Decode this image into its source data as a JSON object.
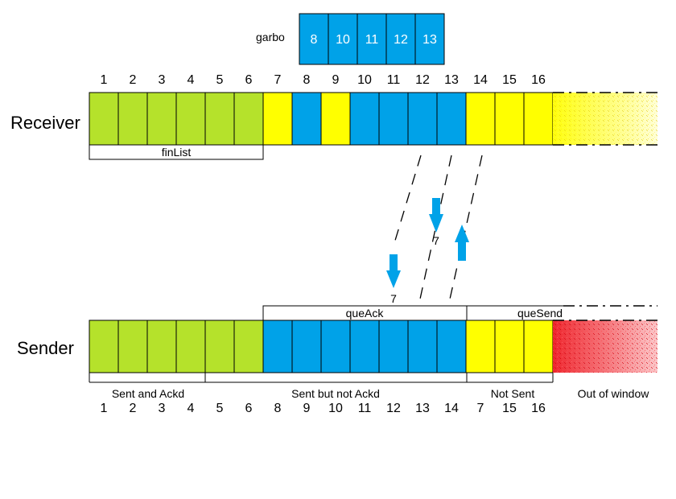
{
  "garbo": {
    "label": "garbo",
    "cells": [
      "8",
      "10",
      "11",
      "12",
      "13"
    ]
  },
  "receiver": {
    "label": "Receiver",
    "numbers": [
      "1",
      "2",
      "3",
      "4",
      "5",
      "6",
      "7",
      "8",
      "9",
      "10",
      "11",
      "12",
      "13",
      "14",
      "15",
      "16"
    ],
    "cell_states": [
      "fin",
      "fin",
      "fin",
      "fin",
      "fin",
      "fin",
      "pending",
      "received",
      "pending",
      "received",
      "received",
      "received",
      "received",
      "pending",
      "pending",
      "pending"
    ],
    "finList_label": "finList"
  },
  "sender": {
    "label": "Sender",
    "cell_states": [
      "acked",
      "acked",
      "acked",
      "acked",
      "acked",
      "acked",
      "sent",
      "sent",
      "sent",
      "sent",
      "sent",
      "sent",
      "sent",
      "notsent",
      "notsent",
      "notsent"
    ],
    "numbers": [
      "1",
      "2",
      "3",
      "4",
      "5",
      "6",
      "8",
      "9",
      "10",
      "11",
      "12",
      "13",
      "14",
      "7",
      "15",
      "16"
    ],
    "queAck_label": "queAck",
    "queSend_label": "queSend",
    "groups": [
      "Sent and Ackd",
      "Sent but not Ackd",
      "Not Sent",
      "Out of window"
    ]
  },
  "packets": {
    "down_ack_1": "7",
    "down_ack_2": "7"
  },
  "colors": {
    "fin": "#b5e22b",
    "pending": "#ffff00",
    "received": "#00a2e8",
    "acked": "#b5e22b",
    "sent": "#00a2e8",
    "notsent": "#ffff00",
    "out_of_window_receiver": "#ffff00",
    "out_of_window_sender": "#ee1c24",
    "arrow": "#00a2e8"
  }
}
